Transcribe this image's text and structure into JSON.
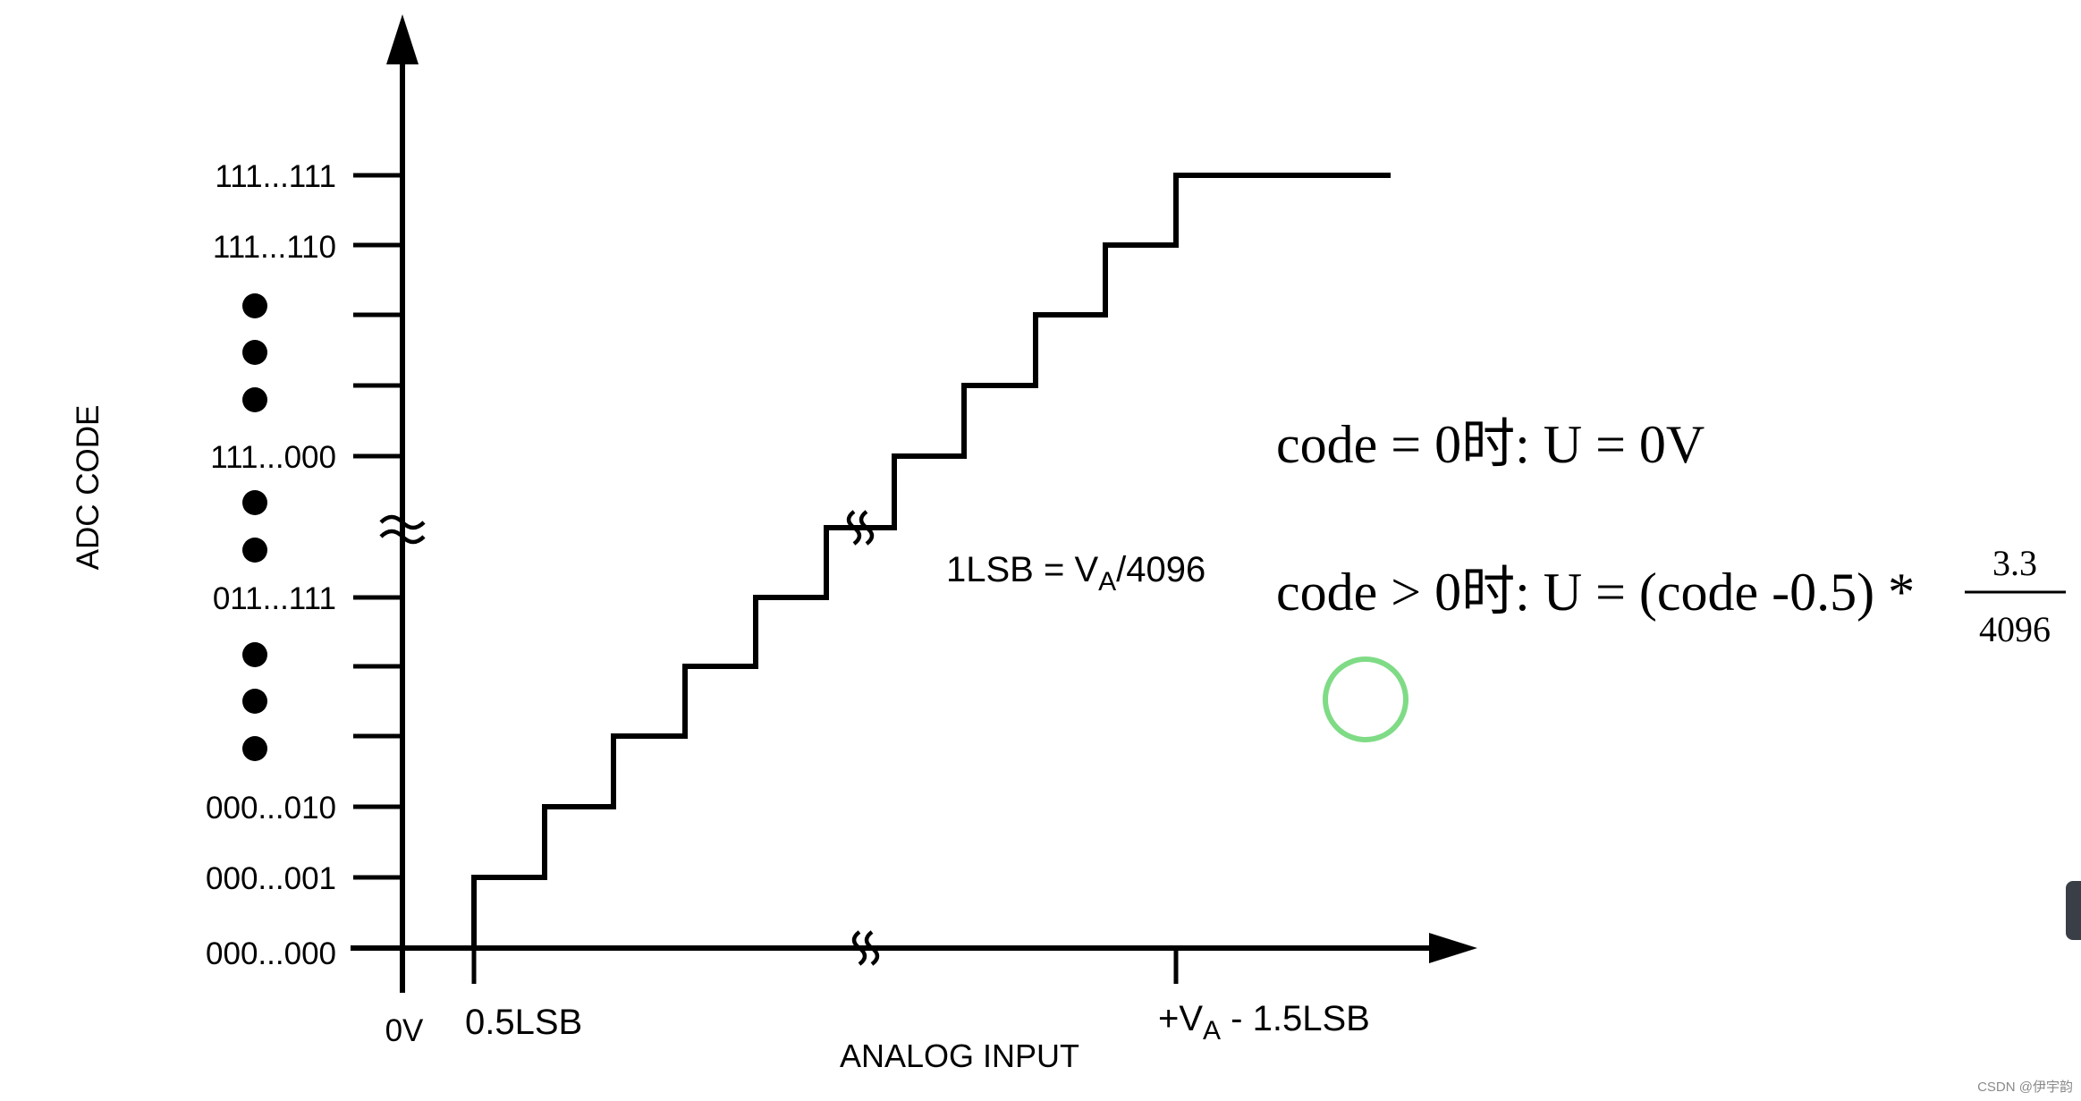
{
  "y_axis": {
    "title": "ADC CODE",
    "ticks": [
      "111...111",
      "111...110",
      "111...000",
      "011...111",
      "000...010",
      "000...001",
      "000...000"
    ]
  },
  "x_axis": {
    "title": "ANALOG INPUT",
    "origin_label": "0V",
    "first_tick": "0.5LSB",
    "last_tick_prefix": "+V",
    "last_tick_sub": "A",
    "last_tick_suffix": " - 1.5LSB"
  },
  "lsb_note": {
    "prefix": "1LSB = V",
    "sub": "A",
    "suffix": "/4096"
  },
  "formula_1": {
    "text": "code = 0时: U = 0V"
  },
  "formula_2": {
    "text": "code > 0时: U = (code -0.5) * ",
    "numerator": "3.3",
    "denominator": "4096"
  },
  "watermark": "CSDN @伊宇韵",
  "colors": {
    "line": "#000000",
    "cursor_ring": "#7fdb86",
    "side_tab": "#3a3f47"
  }
}
